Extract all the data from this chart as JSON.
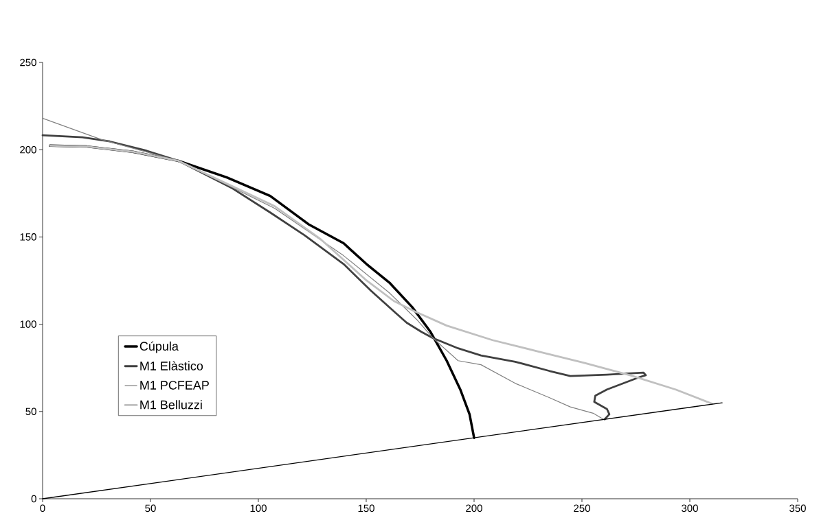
{
  "chart_data": {
    "type": "line",
    "xlim": [
      0,
      350
    ],
    "ylim": [
      0,
      250
    ],
    "xticks": [
      0,
      50,
      100,
      150,
      200,
      250,
      300,
      350
    ],
    "yticks": [
      0,
      50,
      100,
      150,
      200,
      250
    ],
    "legend": "left",
    "series": [
      {
        "name": "Cúpula",
        "color": "#000000",
        "x": [
          3.4,
          20.6,
          41.8,
          63,
          85.4,
          105.5,
          123.6,
          139.5,
          150.1,
          160.7,
          171.3,
          179.8,
          187.3,
          193.6,
          197.9,
          200
        ],
        "values": [
          202.3,
          201.8,
          198.8,
          193.6,
          184.1,
          173.5,
          157,
          146.4,
          134.5,
          123.9,
          109.8,
          95.6,
          79.1,
          62.6,
          48.4,
          34.9
        ]
      },
      {
        "name": "M1 Elàstico",
        "color": "#404040",
        "x": [
          0,
          18.5,
          31.2,
          48.2,
          63,
          87.5,
          105.5,
          121.4,
          139.5,
          152.2,
          162.8,
          168.7,
          175.6,
          180.9,
          192.6,
          203.2,
          219.1,
          235,
          244.6,
          261.6,
          278.5,
          279.6,
          275.4,
          261.6,
          256.2,
          255.7,
          261.6,
          262.7,
          260.5
        ],
        "values": [
          208.3,
          207.1,
          204.7,
          199.4,
          193.6,
          178.2,
          164,
          151,
          134.5,
          119.2,
          107.4,
          100.9,
          95.6,
          92.1,
          86.2,
          82.1,
          78.5,
          73.2,
          70.3,
          71.1,
          72.3,
          70.8,
          69.1,
          62.6,
          59.1,
          55.5,
          51.4,
          48.4,
          45.5
        ]
      },
      {
        "name": "M1 PCFEAP",
        "color": "#808080",
        "x": [
          0,
          27,
          63,
          107.6,
          139.5,
          160.7,
          173.4,
          180.9,
          192.6,
          203.2,
          219.1,
          235,
          244.6,
          255.2,
          260
        ],
        "values": [
          218,
          205.9,
          193.6,
          166.4,
          139.3,
          118,
          102.7,
          92.1,
          79.1,
          76.8,
          66.1,
          57.9,
          52.6,
          49,
          45.5
        ]
      },
      {
        "name": "M1 Belluzzi",
        "color": "#c0c0c0",
        "x": [
          3.4,
          20.6,
          41.8,
          63,
          107.6,
          128.9,
          150.1,
          162.8,
          172.4,
          187.3,
          208.5,
          229.7,
          251,
          272.2,
          293.4,
          310.4
        ],
        "values": [
          202.3,
          201.8,
          198.8,
          193.6,
          167.6,
          148.7,
          125.1,
          113.3,
          107.4,
          99.2,
          90.9,
          84.4,
          77.9,
          70.8,
          62.6,
          54.4
        ]
      },
      {
        "color": "#000000",
        "x": [
          0,
          315
        ],
        "values": [
          0,
          55
        ]
      }
    ]
  }
}
